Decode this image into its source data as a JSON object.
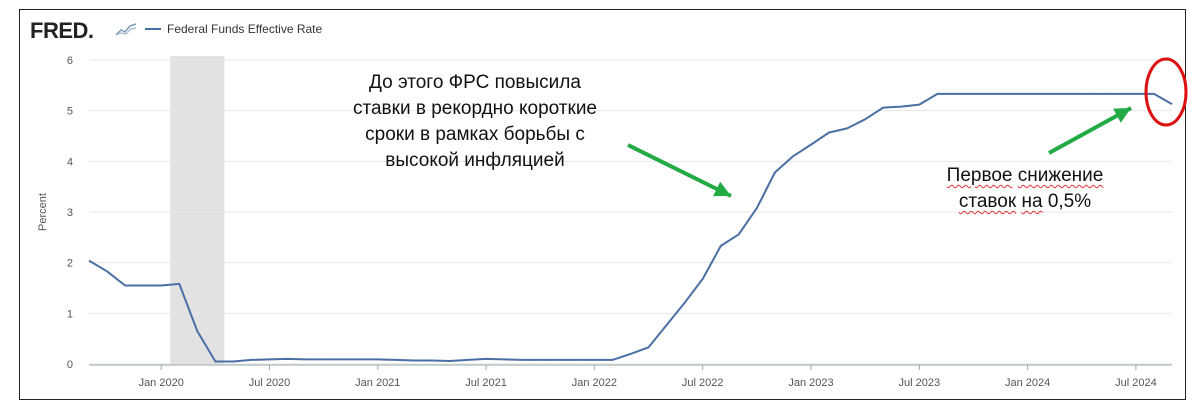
{
  "brand": {
    "logo": "FRED",
    "logo_dot": "."
  },
  "chart_data": {
    "type": "line",
    "series": [
      {
        "name": "Federal Funds Effective Rate",
        "color": "#4a6fa5",
        "x": [
          "2019-09",
          "2019-10",
          "2019-11",
          "2019-12",
          "2020-01",
          "2020-02",
          "2020-03",
          "2020-04",
          "2020-05",
          "2020-06",
          "2020-07",
          "2020-08",
          "2020-09",
          "2020-10",
          "2020-11",
          "2020-12",
          "2021-01",
          "2021-02",
          "2021-03",
          "2021-04",
          "2021-05",
          "2021-06",
          "2021-07",
          "2021-08",
          "2021-09",
          "2021-10",
          "2021-11",
          "2021-12",
          "2022-01",
          "2022-02",
          "2022-03",
          "2022-04",
          "2022-05",
          "2022-06",
          "2022-07",
          "2022-08",
          "2022-09",
          "2022-10",
          "2022-11",
          "2022-12",
          "2023-01",
          "2023-02",
          "2023-03",
          "2023-04",
          "2023-05",
          "2023-06",
          "2023-07",
          "2023-08",
          "2023-09",
          "2023-10",
          "2023-11",
          "2023-12",
          "2024-01",
          "2024-02",
          "2024-03",
          "2024-04",
          "2024-05",
          "2024-06",
          "2024-07",
          "2024-08",
          "2024-09"
        ],
        "values": [
          2.04,
          1.83,
          1.55,
          1.55,
          1.55,
          1.58,
          0.65,
          0.05,
          0.05,
          0.08,
          0.09,
          0.1,
          0.09,
          0.09,
          0.09,
          0.09,
          0.09,
          0.08,
          0.07,
          0.07,
          0.06,
          0.08,
          0.1,
          0.09,
          0.08,
          0.08,
          0.08,
          0.08,
          0.08,
          0.08,
          0.2,
          0.33,
          0.77,
          1.21,
          1.68,
          2.33,
          2.56,
          3.08,
          3.78,
          4.1,
          4.33,
          4.57,
          4.65,
          4.83,
          5.06,
          5.08,
          5.12,
          5.33,
          5.33,
          5.33,
          5.33,
          5.33,
          5.33,
          5.33,
          5.33,
          5.33,
          5.33,
          5.33,
          5.33,
          5.33,
          5.13
        ]
      }
    ],
    "recession": {
      "start": "2020-02",
      "end": "2020-04"
    },
    "ylabel": "Percent",
    "ylim": [
      0,
      6
    ],
    "yticks": [
      0,
      1,
      2,
      3,
      4,
      5,
      6
    ],
    "xlim": [
      "2019-09",
      "2024-09"
    ],
    "xticks": [
      {
        "at": "2020-01",
        "label": "Jan 2020"
      },
      {
        "at": "2020-07",
        "label": "Jul 2020"
      },
      {
        "at": "2021-01",
        "label": "Jan 2021"
      },
      {
        "at": "2021-07",
        "label": "Jul 2021"
      },
      {
        "at": "2022-01",
        "label": "Jan 2022"
      },
      {
        "at": "2022-07",
        "label": "Jul 2022"
      },
      {
        "at": "2023-01",
        "label": "Jan 2023"
      },
      {
        "at": "2023-07",
        "label": "Jul 2023"
      },
      {
        "at": "2024-01",
        "label": "Jan 2024"
      },
      {
        "at": "2024-07",
        "label": "Jul 2024"
      }
    ],
    "grid": true
  },
  "annotations": {
    "left": {
      "lines": [
        "До этого ФРС повысила",
        "ставки в рекордно короткие",
        "сроки в рамках борьбы с",
        "высокой инфляцией"
      ]
    },
    "right": {
      "line1": {
        "w1": "Первое",
        "w2": "снижение"
      },
      "line2": {
        "w1": "ставок",
        "w2": "на",
        "w3": "0,5%"
      }
    },
    "arrow_color": "#22aa44",
    "circle_color": "#dd1111"
  }
}
